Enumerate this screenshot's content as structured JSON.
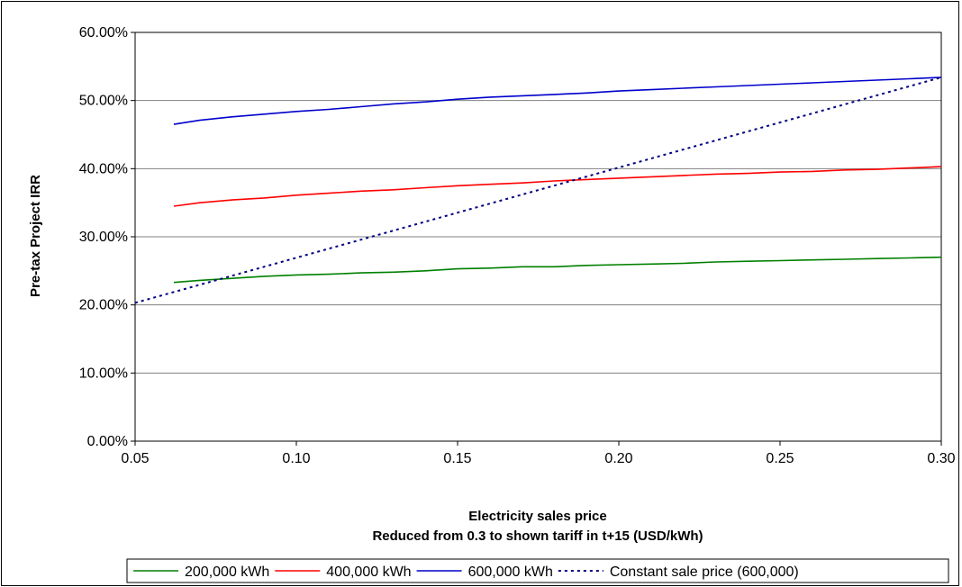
{
  "chart_data": {
    "type": "line",
    "title": "",
    "xlabel": "Electricity sales price",
    "xlabel_sub": "Reduced from 0.3 to shown tariff in t+15 (USD/kWh)",
    "ylabel": "Pre-tax Project IRR",
    "xlim": [
      0.05,
      0.3
    ],
    "ylim": [
      0,
      0.6
    ],
    "x_ticks": [
      0.05,
      0.1,
      0.15,
      0.2,
      0.25,
      0.3
    ],
    "x_tick_labels": [
      "0.05",
      "0.10",
      "0.15",
      "0.20",
      "0.25",
      "0.30"
    ],
    "y_ticks": [
      0,
      0.1,
      0.2,
      0.3,
      0.4,
      0.5,
      0.6
    ],
    "y_tick_labels": [
      "0.00%",
      "10.00%",
      "20.00%",
      "30.00%",
      "40.00%",
      "50.00%",
      "60.00%"
    ],
    "grid": "horizontal",
    "legend_position": "bottom",
    "series": [
      {
        "name": "200,000 kWh",
        "color": "#008000",
        "dash": "solid",
        "x": [
          0.062,
          0.07,
          0.08,
          0.09,
          0.1,
          0.11,
          0.12,
          0.13,
          0.14,
          0.15,
          0.16,
          0.17,
          0.18,
          0.19,
          0.2,
          0.21,
          0.22,
          0.23,
          0.24,
          0.25,
          0.26,
          0.27,
          0.28,
          0.29,
          0.3
        ],
        "y": [
          0.233,
          0.236,
          0.239,
          0.242,
          0.244,
          0.245,
          0.247,
          0.248,
          0.25,
          0.253,
          0.254,
          0.256,
          0.256,
          0.258,
          0.259,
          0.26,
          0.261,
          0.263,
          0.264,
          0.265,
          0.266,
          0.267,
          0.268,
          0.269,
          0.27
        ]
      },
      {
        "name": "400,000 kWh",
        "color": "#ff0000",
        "dash": "solid",
        "x": [
          0.062,
          0.07,
          0.08,
          0.09,
          0.1,
          0.11,
          0.12,
          0.13,
          0.14,
          0.15,
          0.16,
          0.17,
          0.18,
          0.19,
          0.2,
          0.21,
          0.22,
          0.23,
          0.24,
          0.25,
          0.26,
          0.27,
          0.28,
          0.29,
          0.3
        ],
        "y": [
          0.345,
          0.35,
          0.354,
          0.357,
          0.361,
          0.364,
          0.367,
          0.369,
          0.372,
          0.375,
          0.377,
          0.379,
          0.382,
          0.384,
          0.386,
          0.388,
          0.39,
          0.392,
          0.393,
          0.395,
          0.396,
          0.398,
          0.399,
          0.401,
          0.403
        ]
      },
      {
        "name": "600,000 kWh",
        "color": "#0000cc",
        "dash": "solid",
        "x": [
          0.062,
          0.07,
          0.08,
          0.09,
          0.1,
          0.11,
          0.12,
          0.13,
          0.14,
          0.15,
          0.16,
          0.17,
          0.18,
          0.19,
          0.2,
          0.21,
          0.22,
          0.23,
          0.24,
          0.25,
          0.26,
          0.27,
          0.28,
          0.29,
          0.3
        ],
        "y": [
          0.465,
          0.471,
          0.476,
          0.48,
          0.484,
          0.487,
          0.491,
          0.495,
          0.498,
          0.502,
          0.505,
          0.507,
          0.509,
          0.511,
          0.514,
          0.516,
          0.518,
          0.52,
          0.522,
          0.524,
          0.526,
          0.528,
          0.53,
          0.532,
          0.534
        ]
      },
      {
        "name": "Constant sale price (600,000)",
        "color": "#000080",
        "dash": "dotted",
        "x": [
          0.05,
          0.3
        ],
        "y": [
          0.203,
          0.534
        ]
      }
    ]
  }
}
